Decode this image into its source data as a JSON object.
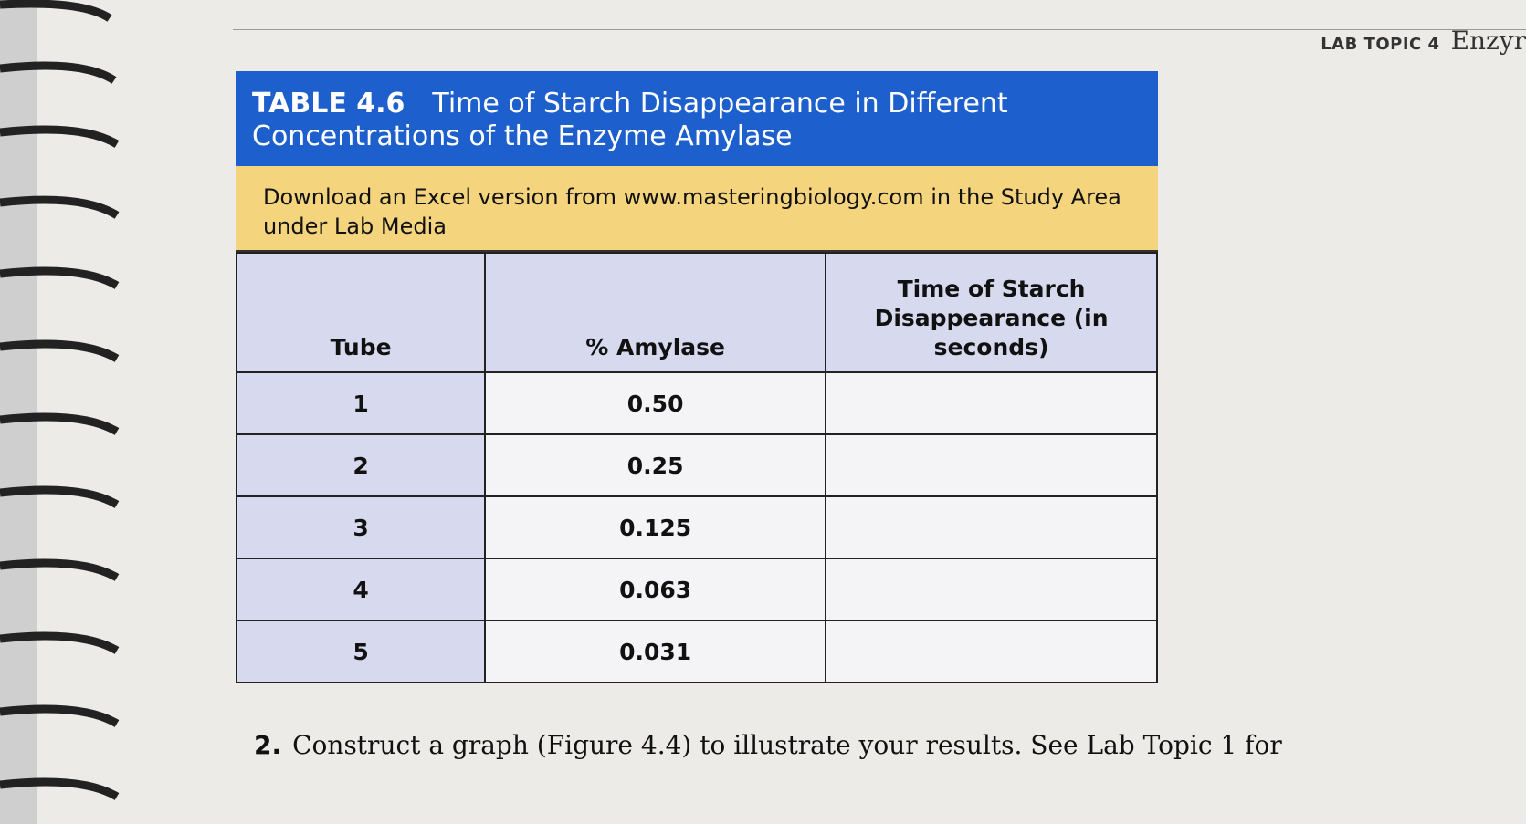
{
  "running_head": {
    "label": "LAB TOPIC 4",
    "title": "Enzyr"
  },
  "table": {
    "number": "TABLE 4.6",
    "title": "Time of Starch Disappearance in Different Concentrations of the Enzyme Amylase",
    "note": "Download an Excel version from www.masteringbiology.com in the Study Area under Lab Media",
    "columns": [
      "Tube",
      "% Amylase",
      "Time of Starch Disappearance (in seconds)"
    ],
    "rows": [
      [
        "1",
        "0.50"
      ],
      [
        "2",
        "0.25"
      ],
      [
        "3",
        "0.125"
      ],
      [
        "4",
        "0.063"
      ],
      [
        "5",
        "0.031"
      ]
    ]
  },
  "step": {
    "number": "2.",
    "text": "Construct a graph (Figure 4.4) to illustrate your results. See Lab Topic 1 for"
  }
}
